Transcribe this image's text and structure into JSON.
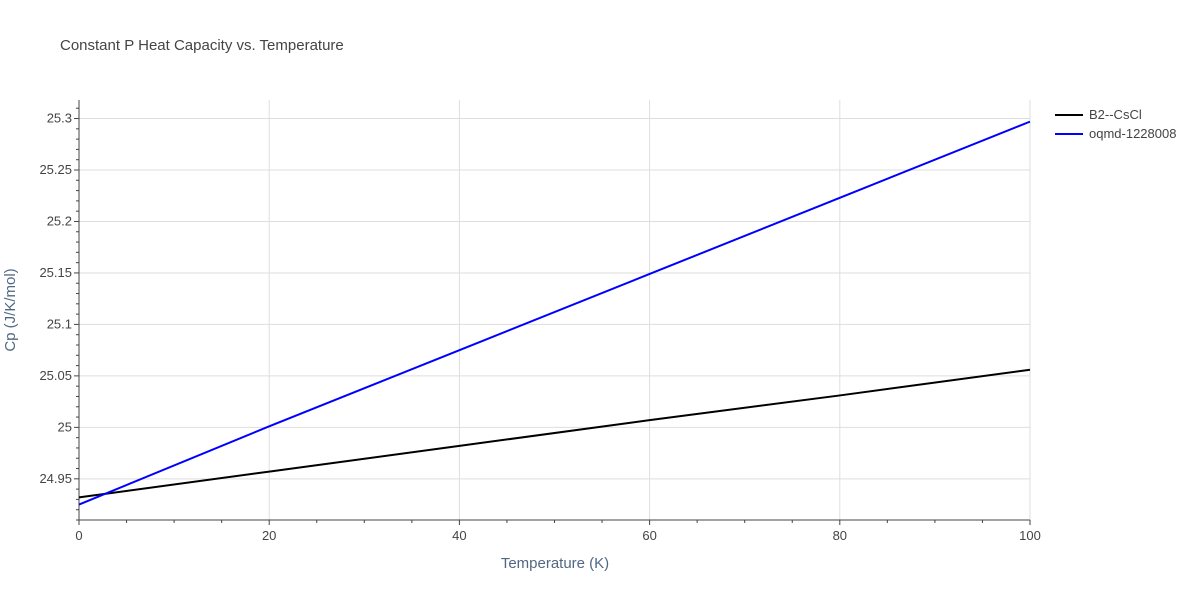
{
  "chart_data": {
    "type": "line",
    "title": "Constant P Heat Capacity vs. Temperature",
    "xlabel": "Temperature (K)",
    "ylabel": "Cp (J/K/mol)",
    "xlim": [
      0,
      100
    ],
    "ylim": [
      24.91,
      25.318
    ],
    "x_ticks": [
      0,
      20,
      40,
      60,
      80,
      100
    ],
    "x_tick_labels": [
      "0",
      "20",
      "40",
      "60",
      "80",
      "100"
    ],
    "y_ticks": [
      24.95,
      25,
      25.05,
      25.1,
      25.15,
      25.2,
      25.25,
      25.3
    ],
    "y_tick_labels": [
      "24.95",
      "25",
      "25.05",
      "25.1",
      "25.15",
      "25.2",
      "25.25",
      "25.3"
    ],
    "grid": true,
    "legend_position": "top-right",
    "series": [
      {
        "name": "B2--CsCl",
        "color": "#000000",
        "x": [
          0,
          20,
          40,
          60,
          80,
          100
        ],
        "y": [
          24.932,
          24.957,
          24.982,
          25.007,
          25.031,
          25.056
        ]
      },
      {
        "name": "oqmd-1228008",
        "color": "#0000ff",
        "x": [
          0,
          20,
          40,
          60,
          80,
          100
        ],
        "y": [
          24.925,
          25.001,
          25.075,
          25.149,
          25.223,
          25.297
        ]
      }
    ]
  }
}
